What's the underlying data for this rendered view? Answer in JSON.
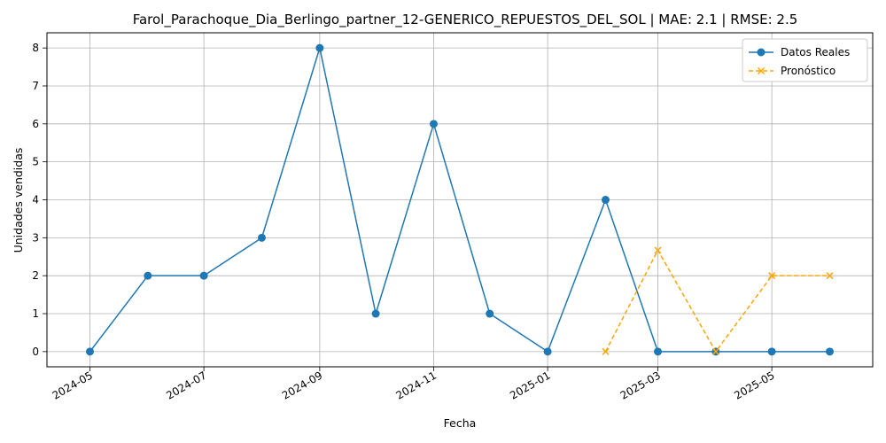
{
  "chart_data": {
    "type": "line",
    "title": "Farol_Parachoque_Dia_Berlingo_partner_12-GENERICO_REPUESTOS_DEL_SOL | MAE: 2.1 | RMSE: 2.5",
    "xlabel": "Fecha",
    "ylabel": "Unidades vendidas",
    "xlim": [
      "2024-04-08",
      "2025-06-24"
    ],
    "ylim": [
      -0.4,
      8.4
    ],
    "x_ticks": [
      "2024-05-01",
      "2024-07-01",
      "2024-09-01",
      "2024-11-01",
      "2025-01-01",
      "2025-03-01",
      "2025-05-01"
    ],
    "x_tick_labels": [
      "2024-05",
      "2024-07",
      "2024-09",
      "2024-11",
      "2025-01",
      "2025-03",
      "2025-05"
    ],
    "y_ticks": [
      0,
      1,
      2,
      3,
      4,
      5,
      6,
      7,
      8
    ],
    "grid": true,
    "legend_position": "top-right",
    "series": [
      {
        "name": "Datos Reales",
        "color": "#1f77b4",
        "marker": "circle",
        "linestyle": "solid",
        "x": [
          "2024-05-01",
          "2024-06-01",
          "2024-07-01",
          "2024-08-01",
          "2024-09-01",
          "2024-10-01",
          "2024-11-01",
          "2024-12-01",
          "2025-01-01",
          "2025-02-01",
          "2025-03-01",
          "2025-04-01",
          "2025-05-01",
          "2025-06-01"
        ],
        "values": [
          0,
          2,
          2,
          3,
          8,
          1,
          6,
          1,
          0,
          4,
          0,
          0,
          0,
          0
        ]
      },
      {
        "name": "Pronóstico",
        "color": "#ffa500",
        "marker": "x",
        "linestyle": "dashed",
        "x": [
          "2025-02-01",
          "2025-03-01",
          "2025-04-01",
          "2025-05-01",
          "2025-06-01"
        ],
        "values": [
          0,
          2.67,
          0,
          2,
          2
        ]
      }
    ]
  }
}
